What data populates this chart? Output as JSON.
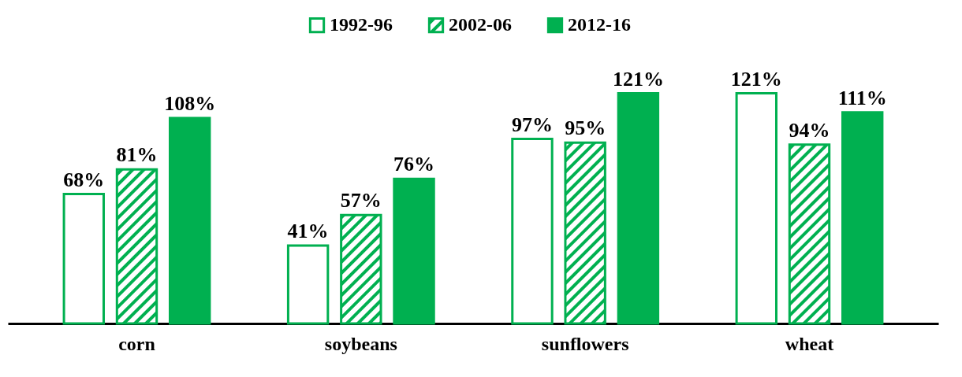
{
  "chart_data": {
    "type": "bar",
    "categories": [
      "corn",
      "soybeans",
      "sunflowers",
      "wheat"
    ],
    "series": [
      {
        "name": "1992-96",
        "color": "#00b050",
        "values": [
          68,
          41,
          97,
          121
        ],
        "value_labels": [
          "68%",
          "41%",
          "97%",
          "121%"
        ]
      },
      {
        "name": "2002-06",
        "color": "#00b050",
        "values": [
          81,
          57,
          95,
          94
        ],
        "value_labels": [
          "81%",
          "57%",
          "95%",
          "94%"
        ]
      },
      {
        "name": "2012-16",
        "color": "#00b050",
        "values": [
          108,
          76,
          121,
          111
        ],
        "value_labels": [
          "108%",
          "76%",
          "121%",
          "111%"
        ]
      }
    ],
    "legend": "top",
    "grid": false
  }
}
